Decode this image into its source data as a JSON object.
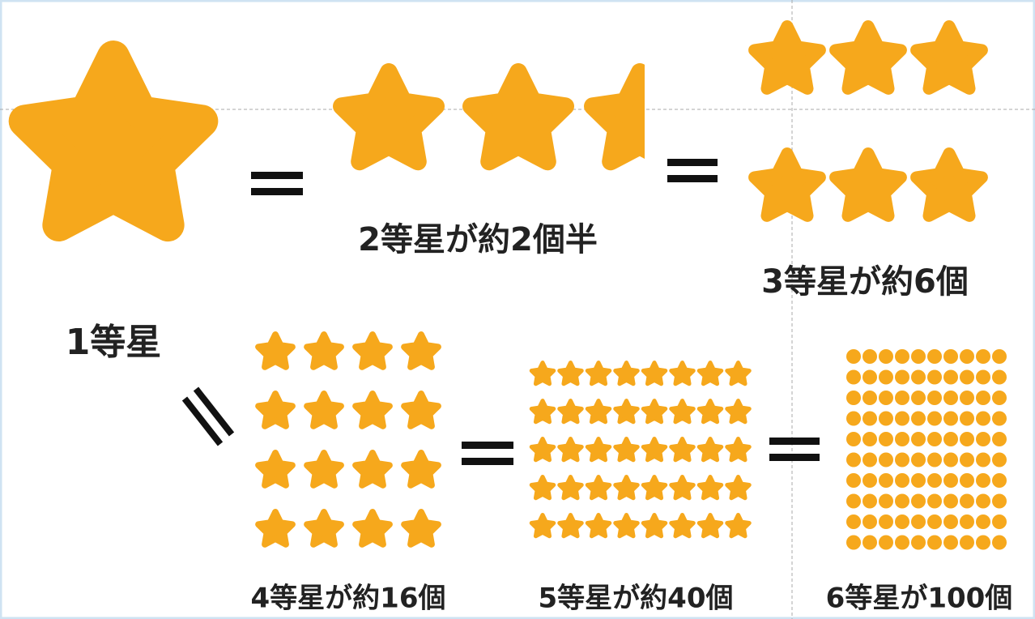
{
  "labels": {
    "mag1": "1等星",
    "mag2": "2等星が約2個半",
    "mag3": "3等星が約6個",
    "mag4": "4等星が約16個",
    "mag5": "5等星が約40個",
    "mag6": "6等星が100個"
  }
}
